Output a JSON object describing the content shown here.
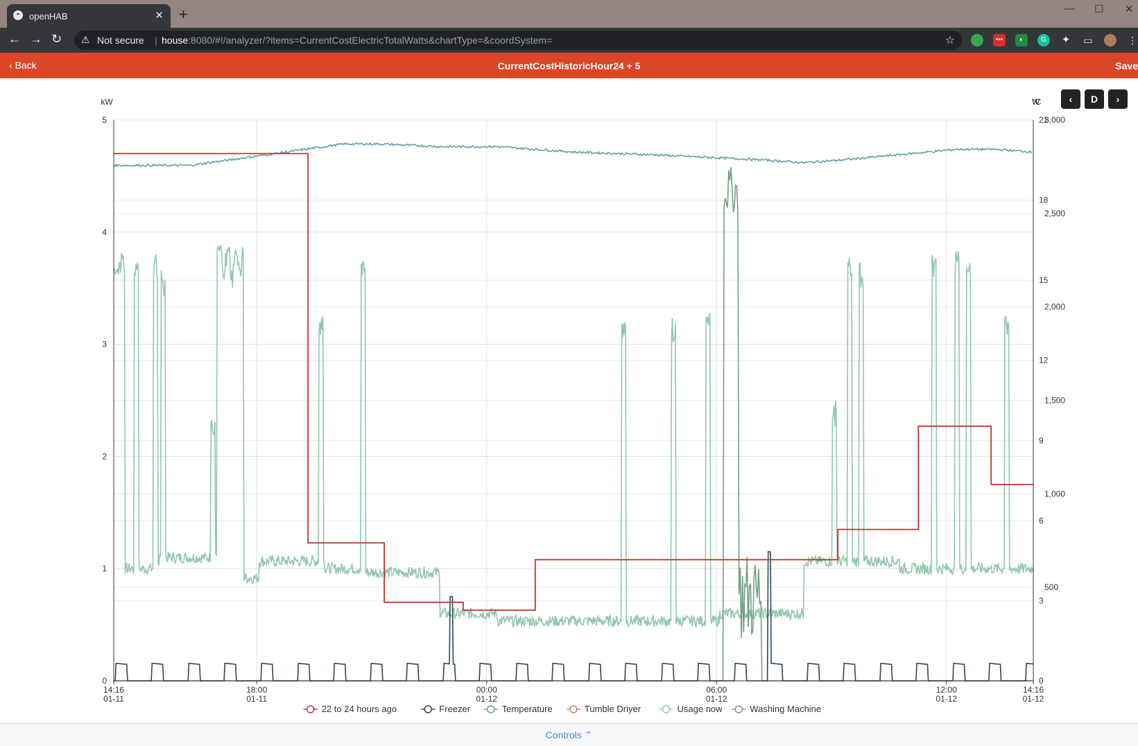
{
  "browser": {
    "tab_title": "openHAB",
    "tab_close": "✕",
    "new_tab": "+",
    "security_label": "Not secure",
    "url_host": "house",
    "url_path": ":8080/#!/analyzer/?items=CurrentCostElectricTotalWatts&chartType=&coordSystem="
  },
  "app": {
    "back_label": "Back",
    "title": "CurrentCostHistoricHour24 + 5",
    "save_label": "Save"
  },
  "period": {
    "prev": "‹",
    "current": "D",
    "next": "›"
  },
  "controls_label": "Controls",
  "chart_data": {
    "type": "line",
    "left_axis": {
      "unit": "kW",
      "range": [
        0,
        5
      ],
      "ticks": [
        "0",
        "1",
        "2",
        "3",
        "4",
        "5"
      ]
    },
    "right_axis_celsius": {
      "unit": "°C",
      "range": [
        0,
        21
      ],
      "ticks": [
        "3",
        "6",
        "9",
        "12",
        "15",
        "18",
        "21"
      ]
    },
    "right_axis_watts": {
      "unit": "W",
      "range": [
        0,
        3000
      ],
      "ticks": [
        "500",
        "1,000",
        "1,500",
        "2,000",
        "2,500",
        "3,000"
      ]
    },
    "right_axis_zero": "0",
    "x_ticks": [
      {
        "time": "14:16",
        "date": "01-11"
      },
      {
        "time": "18:00",
        "date": "01-11"
      },
      {
        "time": "00:00",
        "date": "01-12"
      },
      {
        "time": "06:00",
        "date": "01-12"
      },
      {
        "time": "12:00",
        "date": "01-12"
      },
      {
        "time": "14:16",
        "date": "01-12"
      }
    ],
    "grid": true,
    "legend_position": "bottom",
    "series": [
      {
        "name": "22 to 24 hours ago",
        "color": "#c23531",
        "axis": "kW",
        "points": [
          [
            0,
            4.7
          ],
          [
            5.07,
            4.7
          ],
          [
            5.07,
            1.23
          ],
          [
            7.06,
            1.23
          ],
          [
            7.06,
            0.7
          ],
          [
            9.12,
            0.7
          ],
          [
            9.12,
            0.63
          ],
          [
            11,
            0.63
          ],
          [
            11,
            1.08
          ],
          [
            18.9,
            1.08
          ],
          [
            18.9,
            1.35
          ],
          [
            21,
            1.35
          ],
          [
            21,
            2.27
          ],
          [
            22.9,
            2.27
          ],
          [
            22.9,
            1.75
          ],
          [
            24,
            1.75
          ]
        ]
      },
      {
        "name": "Freezer",
        "color": "#2f4554",
        "axis": "W",
        "values_note": "cycling ~0-100 W with spikes"
      },
      {
        "name": "Temperature",
        "color": "#61a0a8",
        "axis": "°C",
        "points": [
          [
            0,
            19.3
          ],
          [
            2,
            19.3
          ],
          [
            3.5,
            19.6
          ],
          [
            5,
            19.9
          ],
          [
            6,
            20.1
          ],
          [
            7,
            20.1
          ],
          [
            8.5,
            20.0
          ],
          [
            10,
            20.0
          ],
          [
            12,
            19.8
          ],
          [
            14,
            19.7
          ],
          [
            15.5,
            19.6
          ],
          [
            17,
            19.5
          ],
          [
            18,
            19.4
          ],
          [
            19,
            19.5
          ],
          [
            20.5,
            19.7
          ],
          [
            22,
            19.9
          ],
          [
            23,
            19.9
          ],
          [
            24,
            19.8
          ]
        ]
      },
      {
        "name": "Tumble Driyer",
        "color": "#d48265",
        "axis": "W",
        "values_note": "0 W"
      },
      {
        "name": "Usage now",
        "color": "#91c7ae",
        "axis": "W",
        "values_note": "~300-2300 W fluctuating"
      },
      {
        "name": "Washing Machine",
        "color": "#749f83",
        "axis": "W",
        "values_note": "spike to ~2700 W near 06:20"
      }
    ]
  }
}
